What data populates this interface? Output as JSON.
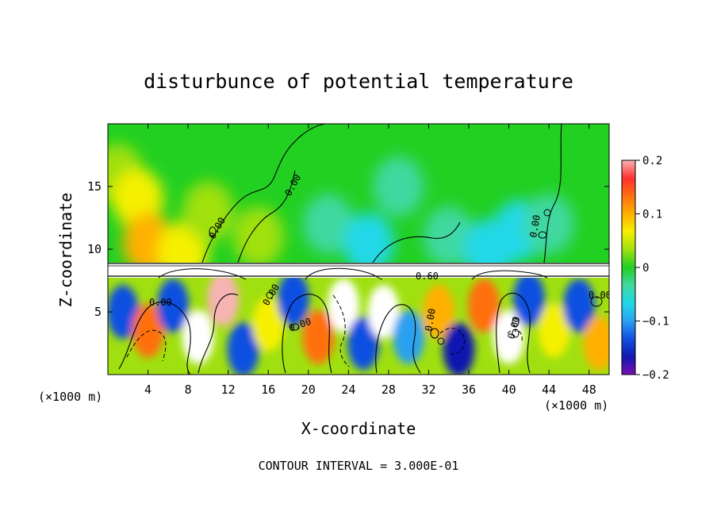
{
  "chart_data": {
    "type": "heatmap",
    "title": "disturbunce of potential temperature",
    "xlabel": "X-coordinate",
    "ylabel": "Z-coordinate",
    "x_unit_label": "(×1000 m)",
    "y_unit_label": "(×1000 m)",
    "x_ticks": [
      "4",
      "8",
      "12",
      "16",
      "20",
      "24",
      "28",
      "32",
      "36",
      "40",
      "44",
      "48"
    ],
    "y_ticks": [
      "5",
      "10",
      "15"
    ],
    "xlim": [
      0,
      50
    ],
    "ylim": [
      0,
      20
    ],
    "colorbar": {
      "ticks": [
        "0.2",
        "0.1",
        "0",
        "−0.1",
        "−0.2"
      ],
      "range": [
        -0.2,
        0.2
      ],
      "colors": [
        "#f7b3b3",
        "#ff3030",
        "#ff7010",
        "#ffb000",
        "#f5f000",
        "#a0e010",
        "#22d022",
        "#40d8a0",
        "#20d8e8",
        "#2aa0f0",
        "#1050e0",
        "#1018b0",
        "#7a10b0"
      ]
    },
    "contour_labels": [
      "0.00",
      "0.00",
      "0.00",
      "0.00",
      "0.00",
      "0.00",
      "0.00",
      "0.00",
      "0.00",
      "0.60"
    ],
    "footer": "CONTOUR INTERVAL = 3.000E-01",
    "upper_blocks": [
      {
        "x": 1.0,
        "z": 16.0,
        "v": 0.045
      },
      {
        "x": 3.0,
        "z": 14.0,
        "v": 0.06
      },
      {
        "x": 4.0,
        "z": 10.5,
        "v": 0.09
      },
      {
        "x": 7.5,
        "z": 9.8,
        "v": 0.07
      },
      {
        "x": 10.0,
        "z": 13.0,
        "v": 0.04
      },
      {
        "x": 15.0,
        "z": 11.0,
        "v": 0.025
      },
      {
        "x": 22.0,
        "z": 12.0,
        "v": -0.035
      },
      {
        "x": 26.0,
        "z": 10.5,
        "v": -0.05
      },
      {
        "x": 29.0,
        "z": 15.0,
        "v": -0.02
      },
      {
        "x": 34.0,
        "z": 11.0,
        "v": -0.03
      },
      {
        "x": 38.0,
        "z": 10.0,
        "v": -0.07
      },
      {
        "x": 41.0,
        "z": 11.5,
        "v": -0.06
      },
      {
        "x": 44.0,
        "z": 12.0,
        "v": -0.03
      }
    ],
    "lower_cells": [
      {
        "x": 1.5,
        "z": 5.0,
        "v": -0.12
      },
      {
        "x": 4.0,
        "z": 3.5,
        "v": 0.12
      },
      {
        "x": 6.5,
        "z": 5.5,
        "v": -0.14
      },
      {
        "x": 9.0,
        "z": 3.0,
        "v": 0.21
      },
      {
        "x": 11.5,
        "z": 6.0,
        "v": 0.2
      },
      {
        "x": 13.5,
        "z": 2.0,
        "v": -0.15
      },
      {
        "x": 16.0,
        "z": 4.0,
        "v": 0.08
      },
      {
        "x": 18.5,
        "z": 6.0,
        "v": -0.12
      },
      {
        "x": 21.0,
        "z": 3.0,
        "v": 0.13
      },
      {
        "x": 23.5,
        "z": 5.5,
        "v": 0.21
      },
      {
        "x": 25.5,
        "z": 2.5,
        "v": -0.13
      },
      {
        "x": 27.5,
        "z": 5.0,
        "v": 0.21
      },
      {
        "x": 30.0,
        "z": 3.0,
        "v": -0.1
      },
      {
        "x": 33.0,
        "z": 5.0,
        "v": 0.09
      },
      {
        "x": 35.0,
        "z": 2.0,
        "v": -0.16
      },
      {
        "x": 37.5,
        "z": 5.5,
        "v": 0.14
      },
      {
        "x": 40.0,
        "z": 3.0,
        "v": 0.21
      },
      {
        "x": 42.0,
        "z": 6.0,
        "v": -0.14
      },
      {
        "x": 44.5,
        "z": 3.5,
        "v": 0.07
      },
      {
        "x": 47.0,
        "z": 5.5,
        "v": -0.12
      },
      {
        "x": 49.0,
        "z": 2.5,
        "v": 0.1
      }
    ]
  }
}
